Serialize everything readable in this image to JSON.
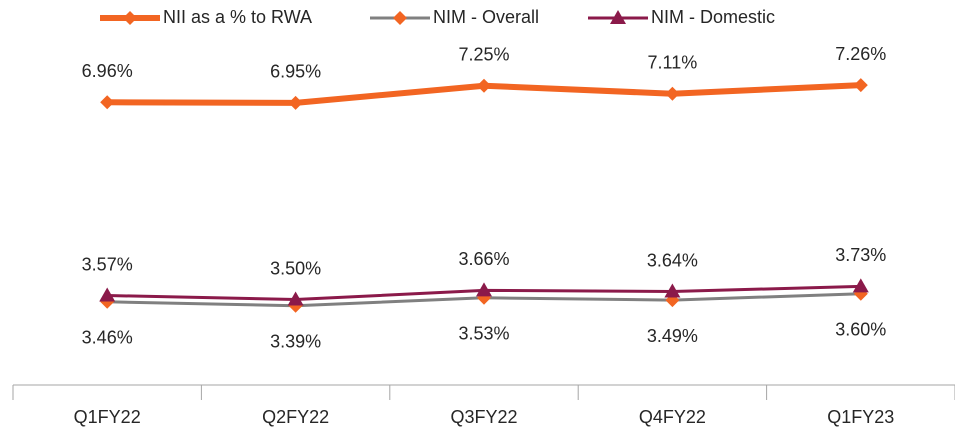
{
  "chart_data": {
    "type": "line",
    "categories": [
      "Q1FY22",
      "Q2FY22",
      "Q3FY22",
      "Q4FY22",
      "Q1FY23"
    ],
    "ylim": [
      2,
      8
    ],
    "series": [
      {
        "name": "NII as a % to RWA",
        "color": "#f26522",
        "marker_color": "#f26522",
        "marker": "diamond",
        "label_position": "above",
        "values": [
          6.96,
          6.95,
          7.25,
          7.11,
          7.26
        ],
        "value_labels": [
          "6.96%",
          "6.95%",
          "7.25%",
          "7.11%",
          "7.26%"
        ]
      },
      {
        "name": "NIM - Overall",
        "color": "#808080",
        "marker_color": "#f26522",
        "marker": "diamond",
        "label_position": "below",
        "values": [
          3.46,
          3.39,
          3.53,
          3.49,
          3.6
        ],
        "value_labels": [
          "3.46%",
          "3.39%",
          "3.53%",
          "3.49%",
          "3.60%"
        ]
      },
      {
        "name": "NIM - Domestic",
        "color": "#8b1a4a",
        "marker_color": "#8b1a4a",
        "marker": "triangle",
        "label_position": "above",
        "values": [
          3.57,
          3.5,
          3.66,
          3.64,
          3.73
        ],
        "value_labels": [
          "3.57%",
          "3.50%",
          "3.66%",
          "3.64%",
          "3.73%"
        ]
      }
    ]
  }
}
